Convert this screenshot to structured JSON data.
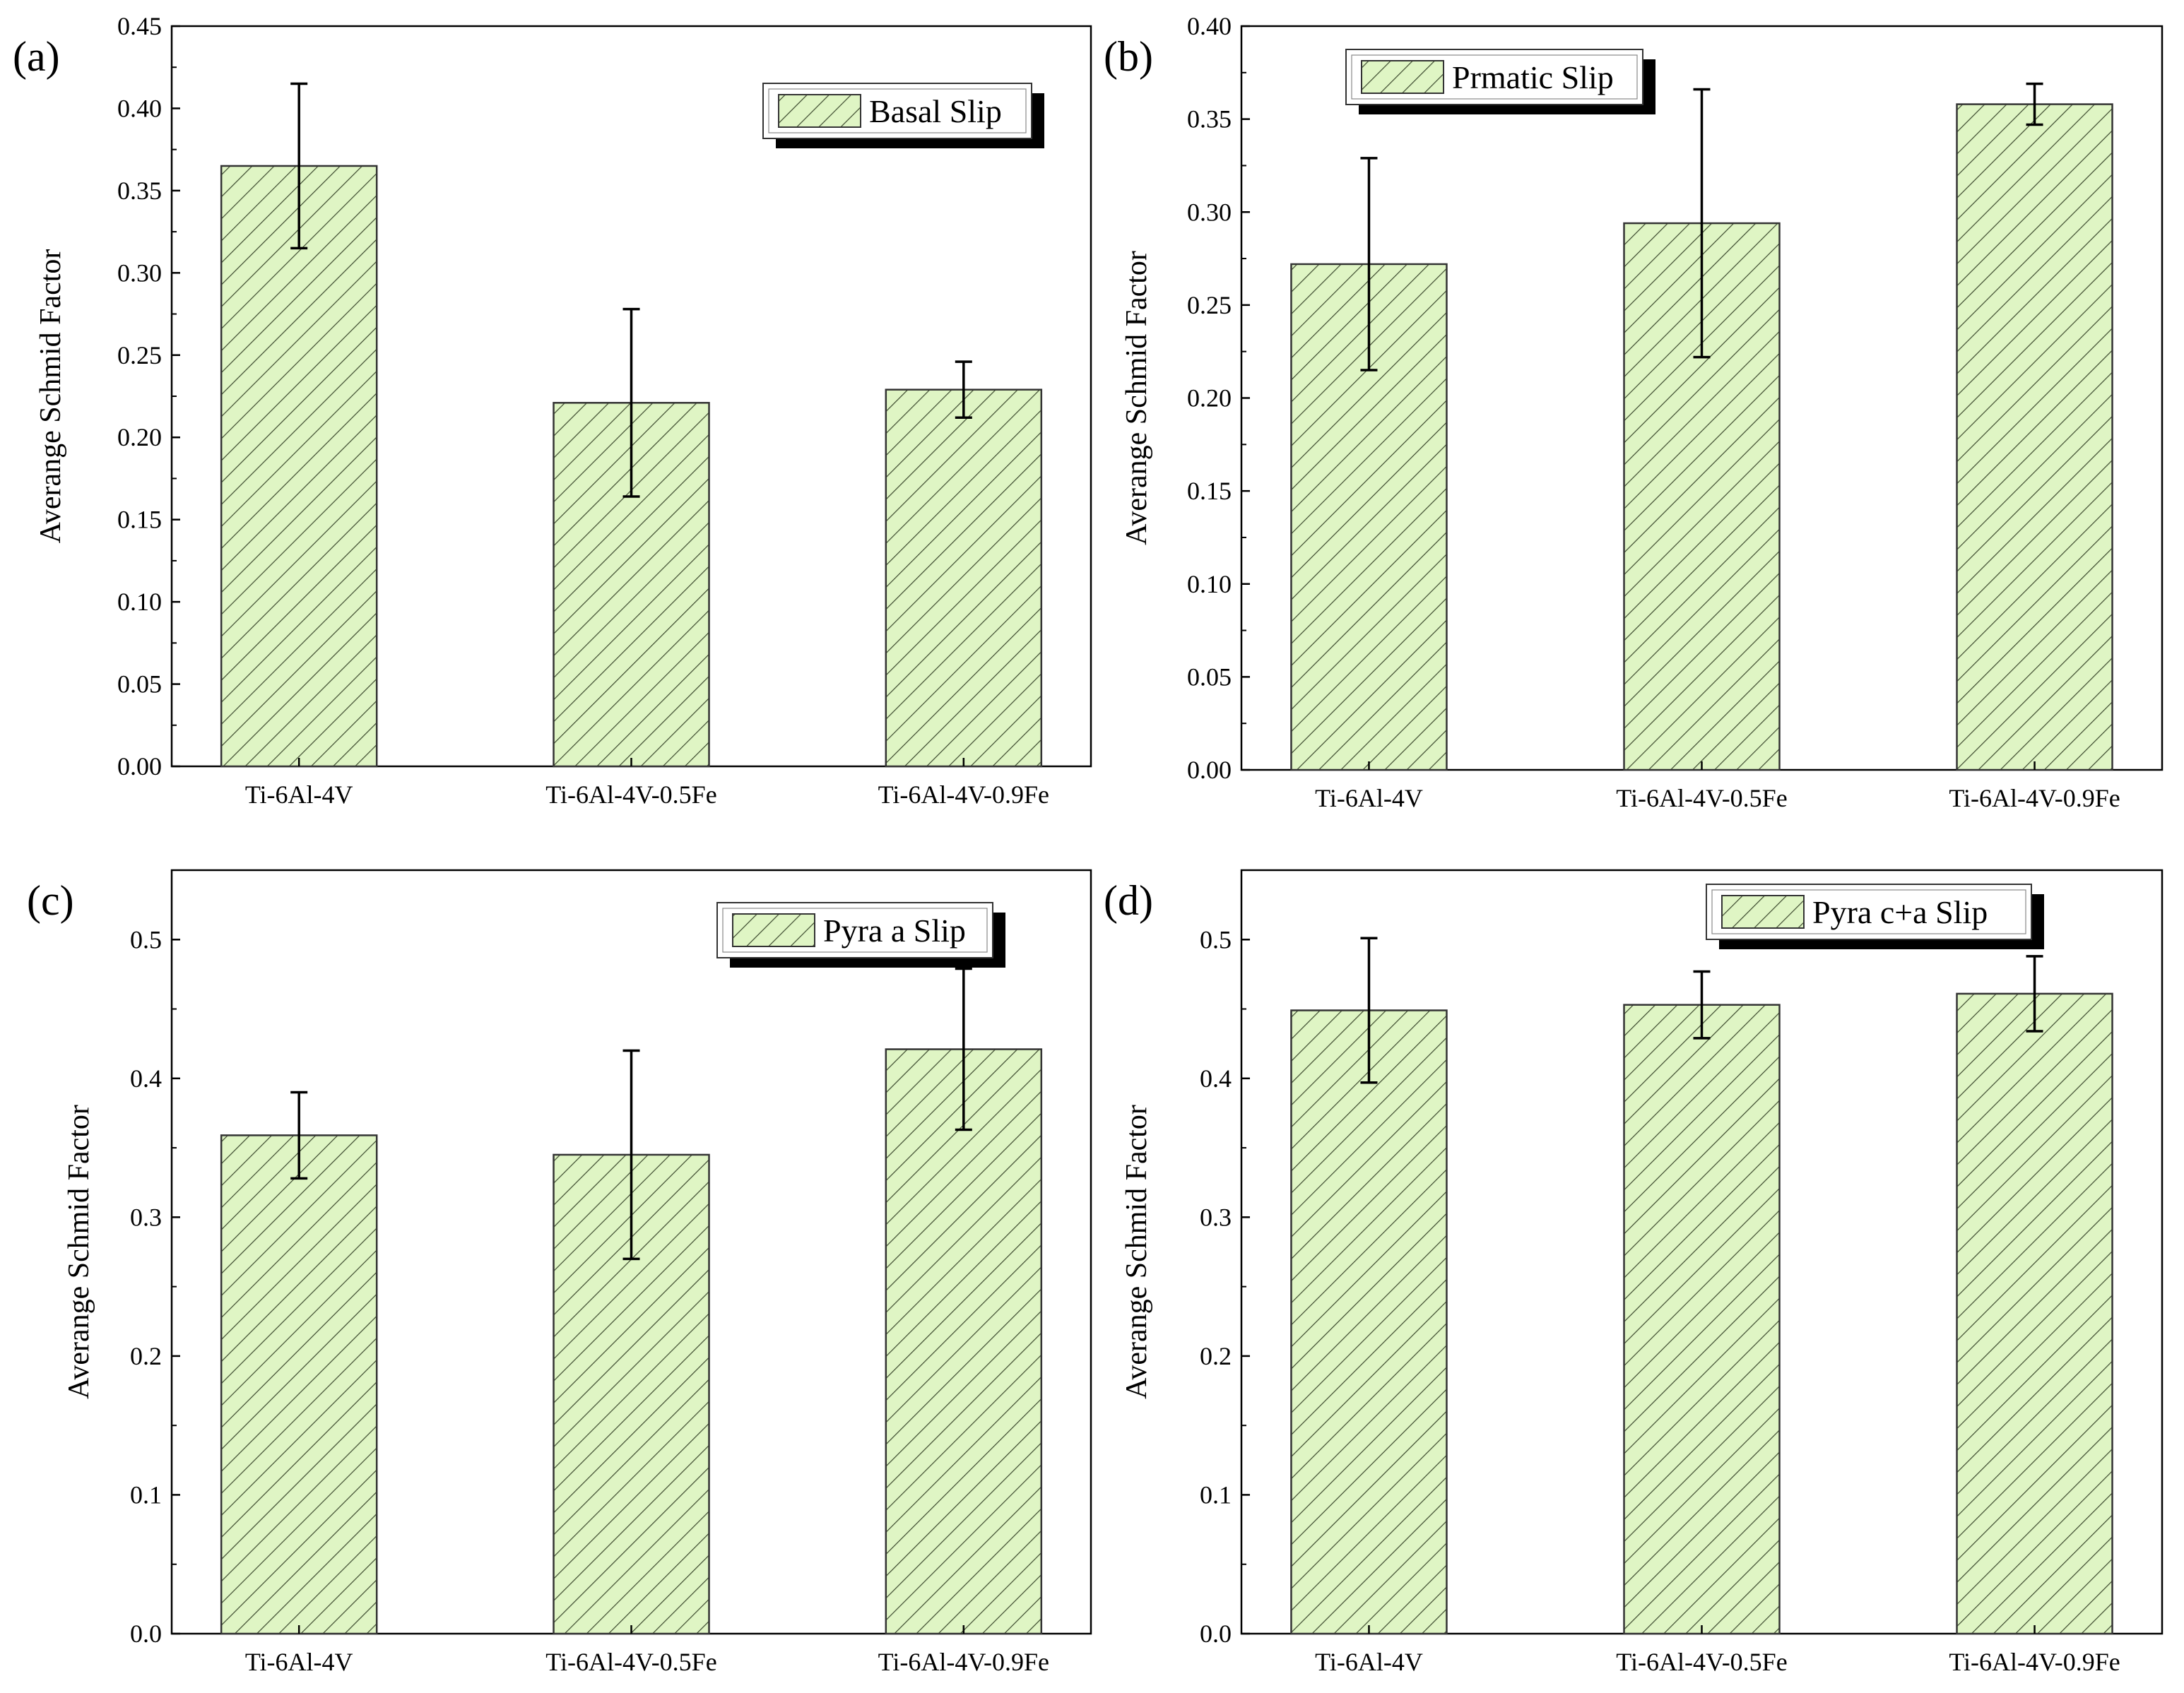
{
  "figure": {
    "bar_fill": "#dff5c4",
    "hatch_color": "#3c4a2e",
    "bar_stroke": "#333333"
  },
  "chart_data": [
    {
      "type": "bar",
      "panel_label": "(a)",
      "legend": "Basal Slip",
      "ylabel": "Averange Schmid Factor",
      "categories": [
        "Ti-6Al-4V",
        "Ti-6Al-4V-0.5Fe",
        "Ti-6Al-4V-0.9Fe"
      ],
      "values": [
        0.365,
        0.221,
        0.229
      ],
      "errors": [
        0.05,
        0.057,
        0.017
      ],
      "ylim": [
        0,
        0.45
      ],
      "yticks": [
        "0.00",
        "0.05",
        "0.10",
        "0.15",
        "0.20",
        "0.25",
        "0.30",
        "0.35",
        "0.40",
        "0.45"
      ]
    },
    {
      "type": "bar",
      "panel_label": "(b)",
      "legend": "Prmatic Slip",
      "ylabel": "Averange Schmid Factor",
      "categories": [
        "Ti-6Al-4V",
        "Ti-6Al-4V-0.5Fe",
        "Ti-6Al-4V-0.9Fe"
      ],
      "values": [
        0.272,
        0.294,
        0.358
      ],
      "errors": [
        0.057,
        0.072,
        0.011
      ],
      "ylim": [
        0,
        0.4
      ],
      "yticks": [
        "0.00",
        "0.05",
        "0.10",
        "0.15",
        "0.20",
        "0.25",
        "0.30",
        "0.35",
        "0.40"
      ]
    },
    {
      "type": "bar",
      "panel_label": "(c)",
      "legend": "Pyra a Slip",
      "ylabel": "Averange Schmid Factor",
      "categories": [
        "Ti-6Al-4V",
        "Ti-6Al-4V-0.5Fe",
        "Ti-6Al-4V-0.9Fe"
      ],
      "values": [
        0.359,
        0.345,
        0.421
      ],
      "errors": [
        0.031,
        0.075,
        0.058
      ],
      "ylim": [
        0,
        0.55
      ],
      "yticks": [
        "0.0",
        "0.1",
        "0.2",
        "0.3",
        "0.4",
        "0.5"
      ]
    },
    {
      "type": "bar",
      "panel_label": "(d)",
      "legend": "Pyra c+a Slip",
      "ylabel": "Averange Schmid Factor",
      "categories": [
        "Ti-6Al-4V",
        "Ti-6Al-4V-0.5Fe",
        "Ti-6Al-4V-0.9Fe"
      ],
      "values": [
        0.449,
        0.453,
        0.461
      ],
      "errors": [
        0.052,
        0.024,
        0.027
      ],
      "ylim": [
        0,
        0.55
      ],
      "yticks": [
        "0.0",
        "0.1",
        "0.2",
        "0.3",
        "0.4",
        "0.5"
      ]
    }
  ]
}
